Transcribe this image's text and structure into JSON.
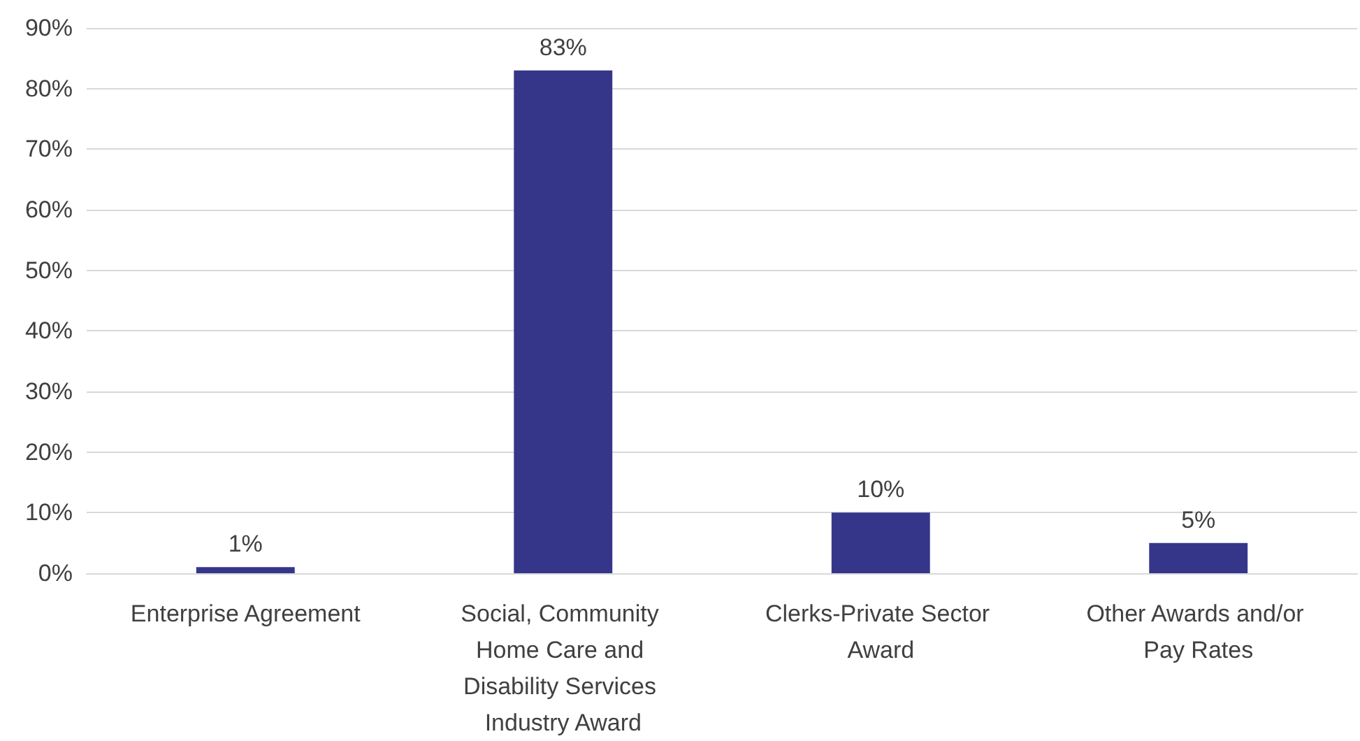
{
  "chart_data": {
    "type": "bar",
    "categories": [
      "Enterprise Agreement",
      "Social, Community Home Care and Disability Services Industry Award",
      "Clerks-Private Sector Award",
      "Other Awards and/or Pay Rates"
    ],
    "values": [
      1,
      83,
      10,
      5
    ],
    "value_labels": [
      "1%",
      "83%",
      "10%",
      "5%"
    ],
    "color": "#35368a",
    "ylim": [
      0,
      90
    ],
    "yticks": [
      {
        "value": 0,
        "label": "0%"
      },
      {
        "value": 10,
        "label": "10%"
      },
      {
        "value": 20,
        "label": "20%"
      },
      {
        "value": 30,
        "label": "30%"
      },
      {
        "value": 40,
        "label": "40%"
      },
      {
        "value": 50,
        "label": "50%"
      },
      {
        "value": 60,
        "label": "60%"
      },
      {
        "value": 70,
        "label": "70%"
      },
      {
        "value": 80,
        "label": "80%"
      },
      {
        "value": 90,
        "label": "90%"
      }
    ],
    "grid": "y"
  }
}
